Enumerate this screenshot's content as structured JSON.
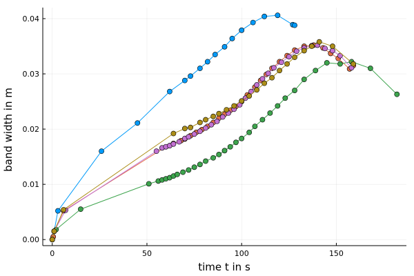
{
  "chart_data": {
    "type": "scatter",
    "xlabel": "time t in s",
    "ylabel": "band width in m",
    "xlim": [
      -5,
      187
    ],
    "ylim": [
      -0.0011,
      0.042
    ],
    "xticks": [
      0,
      50,
      100,
      150
    ],
    "yticks": [
      0.0,
      0.01,
      0.02,
      0.03,
      0.04
    ],
    "xtick_labels": [
      "0",
      "50",
      "100",
      "150"
    ],
    "ytick_labels": [
      "0.00",
      "0.01",
      "0.02",
      "0.03",
      "0.04"
    ],
    "grid": true,
    "legend": "none",
    "series": [
      {
        "color": "#009af9",
        "points": [
          [
            0,
            0.0
          ],
          [
            0.5,
            0.0005
          ],
          [
            1,
            0.0015
          ],
          [
            3,
            0.0052
          ],
          [
            26,
            0.016
          ],
          [
            45,
            0.0211
          ],
          [
            62,
            0.0268
          ],
          [
            70,
            0.0288
          ],
          [
            73,
            0.0296
          ],
          [
            78,
            0.031
          ],
          [
            82,
            0.0322
          ],
          [
            86,
            0.0335
          ],
          [
            91,
            0.0349
          ],
          [
            95,
            0.0364
          ],
          [
            100,
            0.0379
          ],
          [
            106,
            0.0393
          ],
          [
            112,
            0.0404
          ],
          [
            119,
            0.0406
          ],
          [
            127,
            0.0389
          ],
          [
            128,
            0.0388
          ]
        ]
      },
      {
        "color": "#e26f46",
        "points": [
          [
            0,
            0.0
          ],
          [
            0.5,
            0.0005
          ],
          [
            1,
            0.0015
          ],
          [
            6,
            0.0052
          ],
          [
            60,
            0.0168
          ],
          [
            62,
            0.017
          ],
          [
            64,
            0.0174
          ],
          [
            68,
            0.0179
          ],
          [
            70,
            0.0182
          ],
          [
            73,
            0.0188
          ],
          [
            76,
            0.0194
          ],
          [
            79,
            0.0199
          ],
          [
            82,
            0.0205
          ],
          [
            85,
            0.0212
          ],
          [
            88,
            0.022
          ],
          [
            91,
            0.0227
          ],
          [
            94,
            0.0234
          ],
          [
            97,
            0.0241
          ],
          [
            100,
            0.025
          ],
          [
            103,
            0.0262
          ],
          [
            107,
            0.0276
          ],
          [
            110,
            0.0288
          ],
          [
            113,
            0.0299
          ],
          [
            116,
            0.031
          ],
          [
            120,
            0.0322
          ],
          [
            124,
            0.0333
          ],
          [
            128,
            0.0343
          ],
          [
            133,
            0.035
          ],
          [
            138,
            0.0352
          ],
          [
            143,
            0.0347
          ],
          [
            147,
            0.0337
          ],
          [
            151,
            0.0328
          ],
          [
            157,
            0.0309
          ],
          [
            159,
            0.0315
          ]
        ]
      },
      {
        "color": "#3da44d",
        "points": [
          [
            0,
            0.0
          ],
          [
            1,
            0.0015
          ],
          [
            2,
            0.0018
          ],
          [
            15,
            0.0055
          ],
          [
            51,
            0.0101
          ],
          [
            56,
            0.0106
          ],
          [
            58,
            0.0108
          ],
          [
            60,
            0.011
          ],
          [
            62,
            0.0112
          ],
          [
            64,
            0.0115
          ],
          [
            66,
            0.0118
          ],
          [
            69,
            0.0122
          ],
          [
            72,
            0.0126
          ],
          [
            75,
            0.0131
          ],
          [
            78,
            0.0136
          ],
          [
            81,
            0.0142
          ],
          [
            85,
            0.0148
          ],
          [
            88,
            0.0154
          ],
          [
            91,
            0.0161
          ],
          [
            94,
            0.0168
          ],
          [
            97,
            0.0176
          ],
          [
            100,
            0.0183
          ],
          [
            104,
            0.0194
          ],
          [
            107,
            0.0205
          ],
          [
            111,
            0.0217
          ],
          [
            115,
            0.0229
          ],
          [
            119,
            0.0242
          ],
          [
            123,
            0.0256
          ],
          [
            128,
            0.027
          ],
          [
            133,
            0.029
          ],
          [
            139,
            0.0306
          ],
          [
            145,
            0.032
          ],
          [
            152,
            0.0318
          ],
          [
            158,
            0.0322
          ],
          [
            168,
            0.031
          ],
          [
            182,
            0.0263
          ]
        ]
      },
      {
        "color": "#c271d2",
        "points": [
          [
            0,
            0.0
          ],
          [
            1,
            0.0015
          ],
          [
            7,
            0.0053
          ],
          [
            55,
            0.016
          ],
          [
            58,
            0.0166
          ],
          [
            60,
            0.0168
          ],
          [
            62,
            0.017
          ],
          [
            64,
            0.0173
          ],
          [
            67,
            0.0177
          ],
          [
            70,
            0.0183
          ],
          [
            72,
            0.0186
          ],
          [
            75,
            0.0191
          ],
          [
            78,
            0.0196
          ],
          [
            81,
            0.0202
          ],
          [
            84,
            0.0208
          ],
          [
            87,
            0.0214
          ],
          [
            90,
            0.0222
          ],
          [
            93,
            0.0229
          ],
          [
            96,
            0.0236
          ],
          [
            99,
            0.0244
          ],
          [
            102,
            0.0256
          ],
          [
            105,
            0.0268
          ],
          [
            108,
            0.028
          ],
          [
            111,
            0.0291
          ],
          [
            114,
            0.0301
          ],
          [
            117,
            0.0311
          ],
          [
            121,
            0.0321
          ],
          [
            125,
            0.0331
          ],
          [
            129,
            0.0341
          ],
          [
            133,
            0.0347
          ],
          [
            137,
            0.0351
          ],
          [
            140,
            0.0352
          ],
          [
            144,
            0.0346
          ],
          [
            148,
            0.0342
          ],
          [
            152,
            0.0333
          ],
          [
            158,
            0.0311
          ]
        ]
      },
      {
        "color": "#ac8e18",
        "points": [
          [
            0,
            0.0
          ],
          [
            1,
            0.0015
          ],
          [
            6,
            0.0054
          ],
          [
            64,
            0.0192
          ],
          [
            70,
            0.0201
          ],
          [
            73,
            0.0203
          ],
          [
            78,
            0.0212
          ],
          [
            81,
            0.0217
          ],
          [
            85,
            0.0223
          ],
          [
            88,
            0.0228
          ],
          [
            92,
            0.0235
          ],
          [
            96,
            0.0242
          ],
          [
            100,
            0.0251
          ],
          [
            104,
            0.026
          ],
          [
            108,
            0.0271
          ],
          [
            112,
            0.0283
          ],
          [
            116,
            0.0293
          ],
          [
            120,
            0.0306
          ],
          [
            124,
            0.0318
          ],
          [
            128,
            0.033
          ],
          [
            133,
            0.0342
          ],
          [
            137,
            0.035
          ],
          [
            141,
            0.0358
          ],
          [
            148,
            0.035
          ],
          [
            159,
            0.0318
          ]
        ]
      }
    ]
  }
}
